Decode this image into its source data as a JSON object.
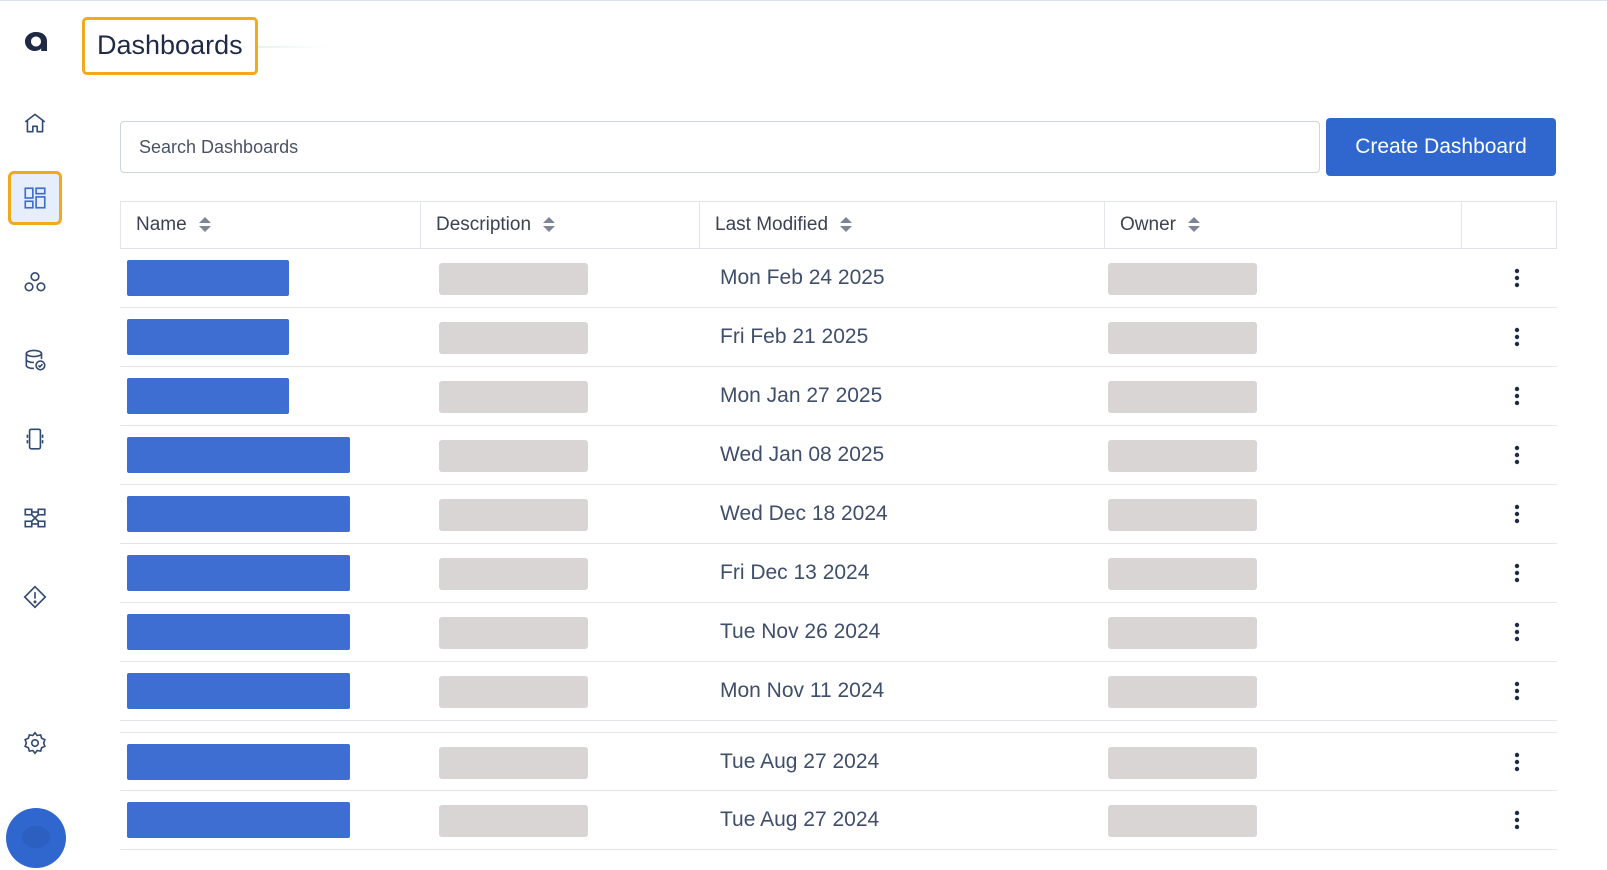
{
  "app": {
    "logo_letter": "a"
  },
  "header": {
    "title": "Dashboards"
  },
  "sidebar": {
    "items": [
      {
        "name": "home",
        "icon": "home-icon"
      },
      {
        "name": "dashboards",
        "icon": "dashboard-grid-icon",
        "active": true
      },
      {
        "name": "graph",
        "icon": "network-nodes-icon"
      },
      {
        "name": "database",
        "icon": "database-check-icon"
      },
      {
        "name": "device",
        "icon": "device-icon"
      },
      {
        "name": "workflow",
        "icon": "workflow-icon"
      },
      {
        "name": "alerts",
        "icon": "alert-diamond-icon"
      }
    ],
    "settings_icon": "gear-icon",
    "avatar": "user-avatar"
  },
  "search": {
    "placeholder": "Search Dashboards",
    "value": ""
  },
  "toolbar": {
    "create_label": "Create Dashboard"
  },
  "colors": {
    "accent": "#2f67cf",
    "highlight": "#f2a91b",
    "redacted_name": "#3f6ed3",
    "redacted_gray": "#d9d5d5"
  },
  "table": {
    "columns": [
      {
        "label": "Name"
      },
      {
        "label": "Description"
      },
      {
        "label": "Last Modified"
      },
      {
        "label": "Owner"
      },
      {
        "label": ""
      }
    ],
    "rows": [
      {
        "name": "[redacted]",
        "description": "[redacted]",
        "last_modified": "Mon Feb 24 2025",
        "owner": "[redacted]"
      },
      {
        "name": "[redacted]",
        "description": "[redacted]",
        "last_modified": "Fri Feb 21 2025",
        "owner": "[redacted]"
      },
      {
        "name": "[redacted]",
        "description": "[redacted]",
        "last_modified": "Mon Jan 27 2025",
        "owner": "[redacted]"
      },
      {
        "name": "[redacted]",
        "description": "[redacted]",
        "last_modified": "Wed Jan 08 2025",
        "owner": "[redacted]"
      },
      {
        "name": "[redacted]",
        "description": "[redacted]",
        "last_modified": "Wed Dec 18 2024",
        "owner": "[redacted]"
      },
      {
        "name": "[redacted]",
        "description": "[redacted]",
        "last_modified": "Fri Dec 13 2024",
        "owner": "[redacted]"
      },
      {
        "name": "[redacted]",
        "description": "[redacted]",
        "last_modified": "Tue Nov 26 2024",
        "owner": "[redacted]"
      },
      {
        "name": "[redacted]",
        "description": "[redacted]",
        "last_modified": "Mon Nov 11 2024",
        "owner": "[redacted]"
      },
      {
        "name": "[redacted]",
        "description": "[redacted]",
        "last_modified": "Tue Aug 27 2024",
        "owner": "[redacted]"
      },
      {
        "name": "[redacted]",
        "description": "[redacted]",
        "last_modified": "Tue Aug 27 2024",
        "owner": "[redacted]"
      }
    ],
    "row_action_icon": "more-vertical-icon"
  }
}
